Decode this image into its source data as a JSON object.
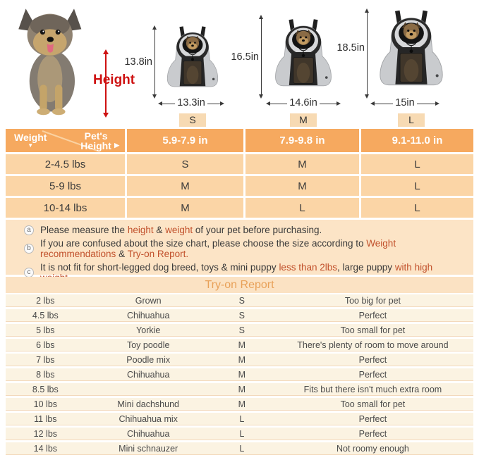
{
  "top": {
    "height_label": "Height",
    "sizes": [
      {
        "height": "13.8in",
        "width": "13.3in",
        "label": "S"
      },
      {
        "height": "16.5in",
        "width": "14.6in",
        "label": "M"
      },
      {
        "height": "18.5in",
        "width": "15in",
        "label": "L"
      }
    ]
  },
  "size_chart": {
    "corner": {
      "row_axis": "Weight",
      "col_axis": "Pet's Height"
    },
    "columns": [
      "5.9-7.9 in",
      "7.9-9.8 in",
      "9.1-11.0 in"
    ],
    "rows": [
      {
        "weight": "2-4.5 lbs",
        "sizes": [
          "S",
          "M",
          "L"
        ]
      },
      {
        "weight": "5-9 lbs",
        "sizes": [
          "M",
          "M",
          "L"
        ]
      },
      {
        "weight": "10-14 lbs",
        "sizes": [
          "M",
          "L",
          "L"
        ]
      }
    ]
  },
  "notes": {
    "items": [
      {
        "marker": "a",
        "parts": [
          {
            "text": "Please measure the ",
            "hl": false
          },
          {
            "text": "height",
            "hl": true
          },
          {
            "text": " & ",
            "hl": false
          },
          {
            "text": "weight",
            "hl": true
          },
          {
            "text": " of your pet before purchasing.",
            "hl": false
          }
        ]
      },
      {
        "marker": "b",
        "parts": [
          {
            "text": "If you are confused about the size chart, please choose the size according to ",
            "hl": false
          },
          {
            "text": "Weight recommendations",
            "hl": true
          },
          {
            "text": " & ",
            "hl": false
          },
          {
            "text": "Try-on Report.",
            "hl": true
          }
        ]
      },
      {
        "marker": "c",
        "parts": [
          {
            "text": "It is not fit for short-legged dog breed, toys & mini puppy ",
            "hl": false
          },
          {
            "text": "less than 2lbs",
            "hl": true
          },
          {
            "text": ", large puppy ",
            "hl": false
          },
          {
            "text": "with high weight.",
            "hl": true
          }
        ]
      }
    ]
  },
  "tryon": {
    "title": "Try-on Report",
    "rows": [
      {
        "weight": "2 lbs",
        "breed": "Grown",
        "size": "S",
        "comment": "Too big for pet"
      },
      {
        "weight": "4.5 lbs",
        "breed": "Chihuahua",
        "size": "S",
        "comment": "Perfect"
      },
      {
        "weight": "5 lbs",
        "breed": "Yorkie",
        "size": "S",
        "comment": "Too small for pet"
      },
      {
        "weight": "6 lbs",
        "breed": "Toy poodle",
        "size": "M",
        "comment": "There's plenty of room to move around"
      },
      {
        "weight": "7 lbs",
        "breed": "Poodle mix",
        "size": "M",
        "comment": "Perfect"
      },
      {
        "weight": "8 lbs",
        "breed": "Chihuahua",
        "size": "M",
        "comment": "Perfect"
      },
      {
        "weight": "8.5 lbs",
        "breed": "",
        "size": "M",
        "comment": "Fits but there isn't much extra room"
      },
      {
        "weight": "10 lbs",
        "breed": "Mini dachshund",
        "size": "M",
        "comment": "Too small for pet"
      },
      {
        "weight": "11 lbs",
        "breed": "Chihuahua mix",
        "size": "L",
        "comment": "Perfect"
      },
      {
        "weight": "12 lbs",
        "breed": "Chihuahua",
        "size": "L",
        "comment": "Perfect"
      },
      {
        "weight": "14 lbs",
        "breed": "Mini schnauzer",
        "size": "L",
        "comment": "Not roomy enough"
      }
    ]
  },
  "colors": {
    "orange": "#F6A95F",
    "peach": "#FBD5A6",
    "notesbg": "#FCE4C6",
    "ttlbg": "#FBE2C3",
    "ttltxt": "#E8A159",
    "badge": "#F7DAB3",
    "hl": "#C1502B",
    "red": "#CE1111"
  }
}
